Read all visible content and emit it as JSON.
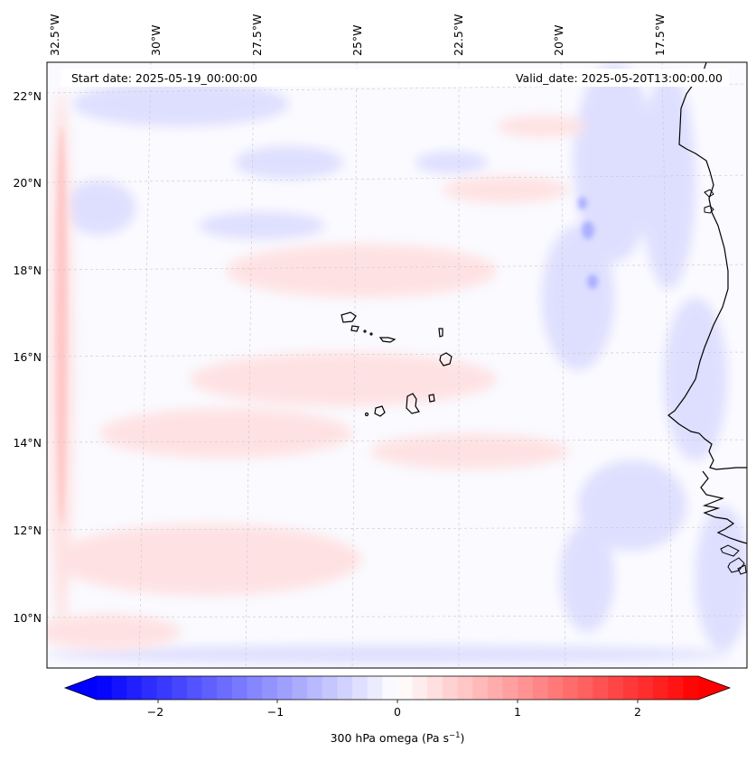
{
  "header": {
    "start_label": "Start date: 2025-05-19_00:00:00",
    "valid_label": "Valid_date: 2025-05-20T13:00:00.00"
  },
  "map": {
    "lon_labels": [
      "32.5°W",
      "30°W",
      "27.5°W",
      "25°W",
      "22.5°W",
      "20°W",
      "17.5°W"
    ],
    "lat_labels": [
      "22°N",
      "20°N",
      "18°N",
      "16°N",
      "14°N",
      "12°N",
      "10°N"
    ],
    "field": "300 hPa omega",
    "colormap": "bwr",
    "gridlines": true
  },
  "colorbar": {
    "ticks": [
      "−2",
      "−1",
      "0",
      "1",
      "2"
    ],
    "label_text": "300 hPa omega (Pa s",
    "label_sup": "−1",
    "label_close": ")",
    "range": [
      -2.7,
      2.7
    ],
    "colors": {
      "negative": "#0000ff",
      "zero": "#ffffff",
      "positive": "#ff0000"
    }
  }
}
